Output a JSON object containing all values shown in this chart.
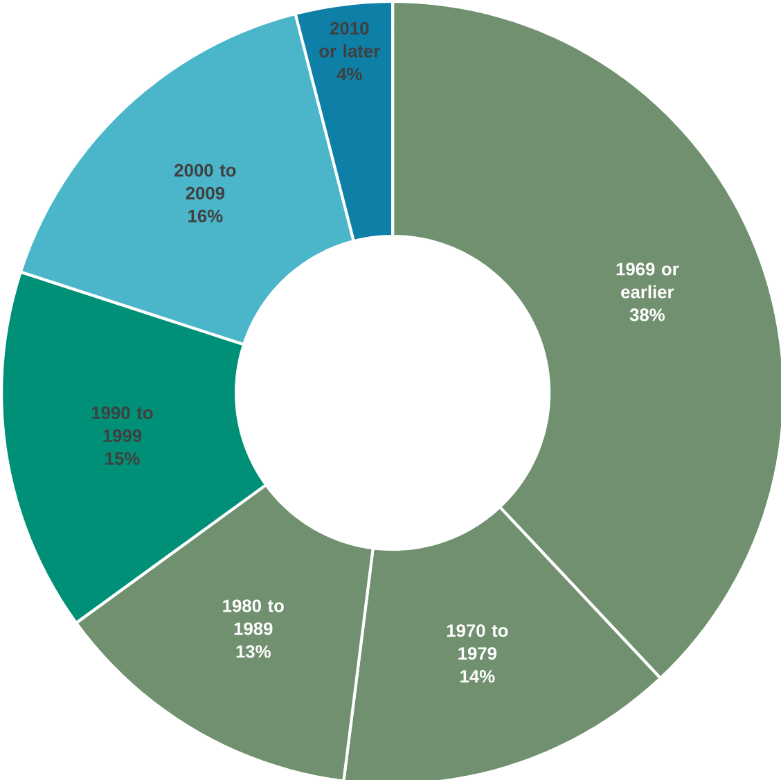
{
  "chart_data": {
    "type": "donut",
    "categories": [
      "1969 or earlier",
      "1970 to 1979",
      "1980 to 1989",
      "1990 to 1999",
      "2000 to 2009",
      "2010 or later"
    ],
    "values": [
      38,
      14,
      13,
      15,
      16,
      4
    ],
    "colors": [
      "#71906f",
      "#71906f",
      "#71906f",
      "#009077",
      "#4bb5c9",
      "#0e7fa6"
    ],
    "value_labels": [
      "38%",
      "14%",
      "13%",
      "15%",
      "16%",
      "4%"
    ]
  }
}
